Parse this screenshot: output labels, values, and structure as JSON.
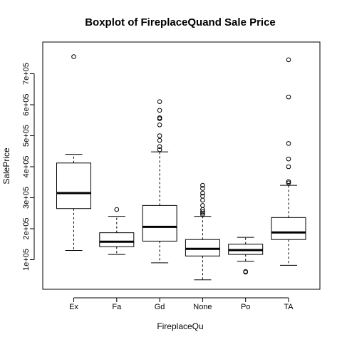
{
  "chart_data": {
    "type": "boxplot",
    "title": "Boxplot of FireplaceQuand Sale Price",
    "xlabel": "FireplaceQu",
    "ylabel": "SalePrice",
    "ylim": [
      0,
      780000
    ],
    "y_tick_values": [
      100000,
      200000,
      300000,
      400000,
      500000,
      600000,
      700000
    ],
    "y_tick_labels": [
      "1e+05",
      "2e+05",
      "3e+05",
      "4e+05",
      "5e+05",
      "6e+05",
      "7e+05"
    ],
    "categories": [
      "Ex",
      "Fa",
      "Gd",
      "None",
      "Po",
      "TA"
    ],
    "boxes": [
      {
        "category": "Ex",
        "min": 130000,
        "q1": 265000,
        "median": 315000,
        "q3": 412000,
        "max": 440000,
        "outliers": [
          755000
        ]
      },
      {
        "category": "Fa",
        "min": 117000,
        "q1": 142000,
        "median": 158000,
        "q3": 187000,
        "max": 240000,
        "outliers": [
          262000
        ]
      },
      {
        "category": "Gd",
        "min": 90000,
        "q1": 160000,
        "median": 206000,
        "q3": 275000,
        "max": 448000,
        "outliers": [
          455000,
          465000,
          485000,
          500000,
          535000,
          555000,
          558000,
          582000,
          610000
        ]
      },
      {
        "category": "None",
        "min": 35000,
        "q1": 112000,
        "median": 135000,
        "q3": 165000,
        "max": 240000,
        "outliers": [
          245000,
          250000,
          255000,
          262000,
          275000,
          292000,
          305000,
          315000,
          330000,
          340000
        ]
      },
      {
        "category": "Po",
        "min": 95000,
        "q1": 117000,
        "median": 131000,
        "q3": 150000,
        "max": 172000,
        "outliers": [
          60000,
          62000
        ]
      },
      {
        "category": "TA",
        "min": 82000,
        "q1": 165000,
        "median": 188000,
        "q3": 236000,
        "max": 340000,
        "outliers": [
          348000,
          352000,
          400000,
          425000,
          475000,
          625000,
          745000
        ]
      }
    ]
  }
}
